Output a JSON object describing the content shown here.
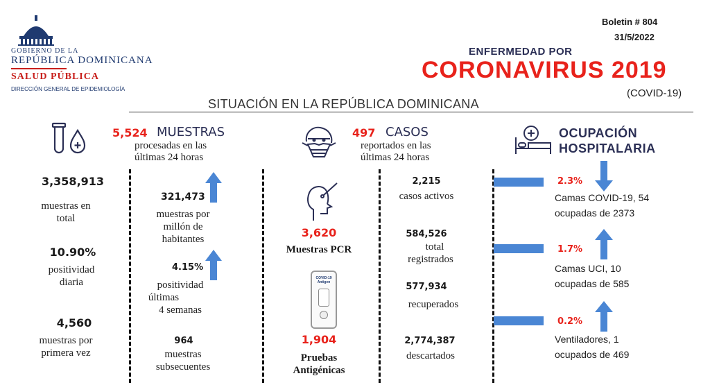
{
  "header": {
    "org_line1": "GOBIERNO DE LA",
    "org_line2": "REPÚBLICA DOMINICANA",
    "org_line3": "SALUD PÚBLICA",
    "org_line4": "DIRECCIÓN GENERAL DE EPIDEMIOLOGÍA",
    "boletin": "Boletin # 804",
    "date": "31/5/2022",
    "title_small": "ENFERMEDAD POR",
    "title_big": "CORONAVIRUS 2019",
    "title_sub": "(COVID-19)",
    "section_title": "SITUACIÓN EN LA REPÚBLICA DOMINICANA"
  },
  "muestras": {
    "count": "5,524",
    "heading": "MUESTRAS",
    "desc1": "procesadas en las",
    "desc2": "últimas 24 horas",
    "total_value": "3,358,913",
    "total_label1": "muestras en",
    "total_label2": "total",
    "pos_value": "10.90%",
    "pos_label1": "positividad",
    "pos_label2": "diaria",
    "first_value": "4,560",
    "first_label1": "muestras por",
    "first_label2": "primera vez",
    "permillion_value": "321,473",
    "permillion_label1": "muestras por",
    "permillion_label2": "millón de",
    "permillion_label3": "habitantes",
    "pos4_value": "4.15%",
    "pos4_label1": "positividad",
    "pos4_label2": "últimas",
    "pos4_label3": "4 semanas",
    "subs_value": "964",
    "subs_label1": "muestras",
    "subs_label2": "subsecuentes"
  },
  "casos": {
    "count": "497",
    "heading": "CASOS",
    "desc1": "reportados en las",
    "desc2": "últimas 24 horas",
    "pcr_value": "3,620",
    "pcr_label": "Muestras PCR",
    "ag_value": "1,904",
    "ag_label1": "Pruebas",
    "ag_label2": "Antigénicas",
    "test_kit_text": "COVID-19 Antigen",
    "activos_value": "2,215",
    "activos_label": "casos activos",
    "total_value": "584,526",
    "total_label1": "total",
    "total_label2": "registrados",
    "recup_value": "577,934",
    "recup_label": "recuperados",
    "desc_value": "2,774,387",
    "desc_label": "descartados"
  },
  "ocupacion": {
    "heading1": "OCUPACIÓN",
    "heading2": "HOSPITALARIA",
    "items": [
      {
        "pct": "2.3%",
        "line1": "Camas COVID-19,  54",
        "line2": "ocupadas de 2373",
        "direction": "down"
      },
      {
        "pct": "1.7%",
        "line1": "Camas UCI,  10",
        "line2": "ocupadas de 585",
        "direction": "up"
      },
      {
        "pct": "0.2%",
        "line1": "Ventiladores, 1",
        "line2": "ocupados de 469",
        "direction": "up"
      }
    ]
  },
  "colors": {
    "accent_red": "#e8221b",
    "arrow_blue": "#4a86d4",
    "navy": "#2b2f55"
  }
}
